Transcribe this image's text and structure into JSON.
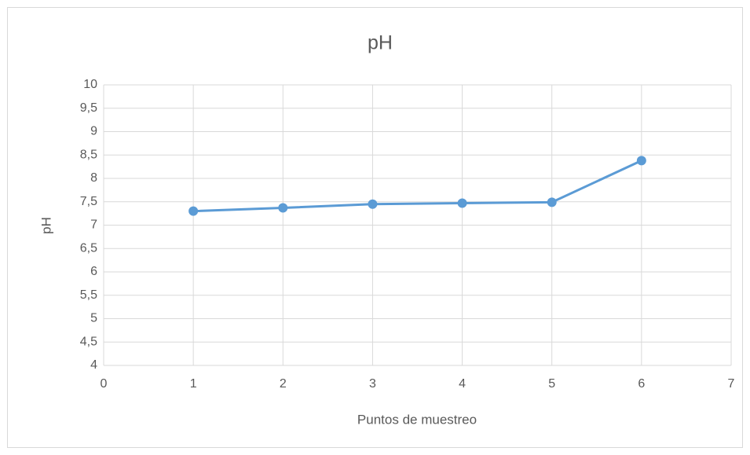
{
  "chart_data": {
    "type": "line",
    "title": "pH",
    "xlabel": "Puntos de muestreo",
    "ylabel": "pH",
    "x": [
      1,
      2,
      3,
      4,
      5,
      6
    ],
    "values": [
      7.3,
      7.37,
      7.45,
      7.47,
      7.49,
      8.38
    ],
    "color": "#5b9bd5",
    "xlim": [
      0,
      7
    ],
    "xticks": [
      0,
      1,
      2,
      3,
      4,
      5,
      6,
      7
    ],
    "ylim": [
      4,
      10
    ],
    "yticks": [
      4,
      {
        "value": 4.5,
        "label": "4,5"
      },
      5,
      {
        "value": 5.5,
        "label": "5,5"
      },
      6,
      {
        "value": 6.5,
        "label": "6,5"
      },
      7,
      {
        "value": 7.5,
        "label": "7,5"
      },
      8,
      {
        "value": 8.5,
        "label": "8,5"
      },
      9,
      {
        "value": 9.5,
        "label": "9,5"
      },
      10
    ],
    "grid": true
  }
}
